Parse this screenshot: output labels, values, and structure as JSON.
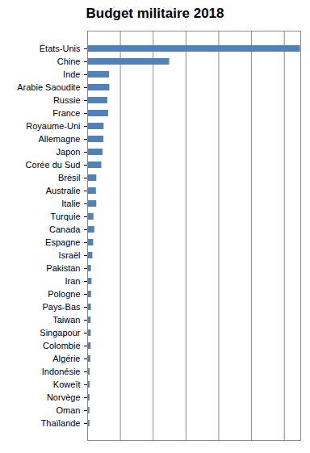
{
  "chart_data": {
    "type": "bar",
    "title": "Budget militaire 2018",
    "orientation": "horizontal",
    "categories": [
      "États-Unis",
      "Chine",
      "Inde",
      "Arabie Saoudite",
      "Russie",
      "France",
      "Royaume-Uni",
      "Allemagne",
      "Japon",
      "Corée du Sud",
      "Brésil",
      "Australie",
      "Italie",
      "Turquie",
      "Canada",
      "Espagne",
      "Israël",
      "Pakistan",
      "Iran",
      "Pologne",
      "Pays-Bas",
      "Taiwan",
      "Singapour",
      "Colombie",
      "Algérie",
      "Indonésie",
      "Koweït",
      "Norvège",
      "Oman",
      "Thaïlande"
    ],
    "values": [
      649,
      250,
      66.5,
      67.6,
      61.4,
      63.8,
      50,
      49.5,
      46.6,
      43.1,
      27.8,
      26.7,
      27.8,
      19,
      21.6,
      18.2,
      15.9,
      11.4,
      13.2,
      11.6,
      11.2,
      10.5,
      10.8,
      10.6,
      9.6,
      7.4,
      7.3,
      7.1,
      6.7,
      6.8
    ],
    "color": "#4f81bd",
    "xlim": [
      0,
      650
    ],
    "xticks": [
      0,
      100,
      200,
      300,
      400,
      500,
      600
    ],
    "grid": true,
    "tick_labels": "y"
  }
}
